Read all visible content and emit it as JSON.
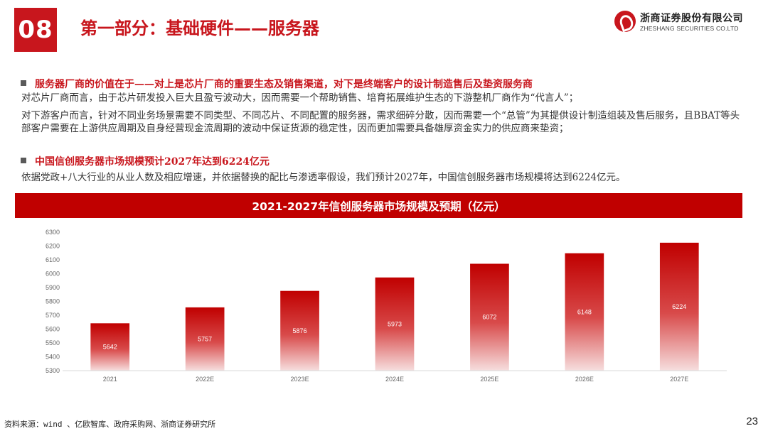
{
  "header": {
    "section_number": "08",
    "section_title": "第一部分：基础硬件——服务器",
    "brand_cn": "浙商证券股份有限公司",
    "brand_en": "ZHESHANG SECURITIES CO.LTD",
    "brand_color": "#c8161d"
  },
  "bullets": [
    {
      "title": "服务器厂商的价值在于——对上是芯片厂商的重要生态及销售渠道，对下是终端客户的设计制造售后及垫资服务商",
      "paragraphs": [
        "对芯片厂商而言，由于芯片研发投入巨大且盈亏波动大，因而需要一个帮助销售、培育拓展维护生态的下游整机厂商作为“代言人”；",
        "对下游客户而言，针对不同业务场景需要不同类型、不同芯片、不同配置的服务器，需求细碎分散，因而需要一个“总管”为其提供设计制造组装及售后服务，且BBAT等头部客户需要在上游供应周期及自身经营现金流周期的波动中保证货源的稳定性，因而更加需要具备雄厚资金实力的供应商来垫资；"
      ]
    },
    {
      "title": "中国信创服务器市场规模预计2027年达到6224亿元",
      "paragraphs": [
        "依据党政+八大行业的从业人数及相应增速，并依据替换的配比与渗透率假设，我们预计2027年，中国信创服务器市场规模将达到6224亿元。"
      ]
    }
  ],
  "chart_banner": "2021-2027年信创服务器市场规模及预期（亿元）",
  "chart_data": {
    "type": "bar",
    "title": "2021-2027年信创服务器市场规模及预期（亿元）",
    "categories": [
      "2021",
      "2022E",
      "2023E",
      "2024E",
      "2025E",
      "2026E",
      "2027E"
    ],
    "values": [
      5642,
      5757,
      5876,
      5973,
      6072,
      6148,
      6224
    ],
    "ylim": [
      5300,
      6300
    ],
    "yticks": [
      5300,
      5400,
      5500,
      5600,
      5700,
      5800,
      5900,
      6000,
      6100,
      6200,
      6300
    ],
    "grid": false,
    "data_labels": true,
    "bar_gradient": [
      "#c00000",
      "#f6dede"
    ]
  },
  "footer": {
    "source": "资料来源：wind 、亿欧智库、政府采购网、浙商证券研究所",
    "page_number": "23"
  }
}
